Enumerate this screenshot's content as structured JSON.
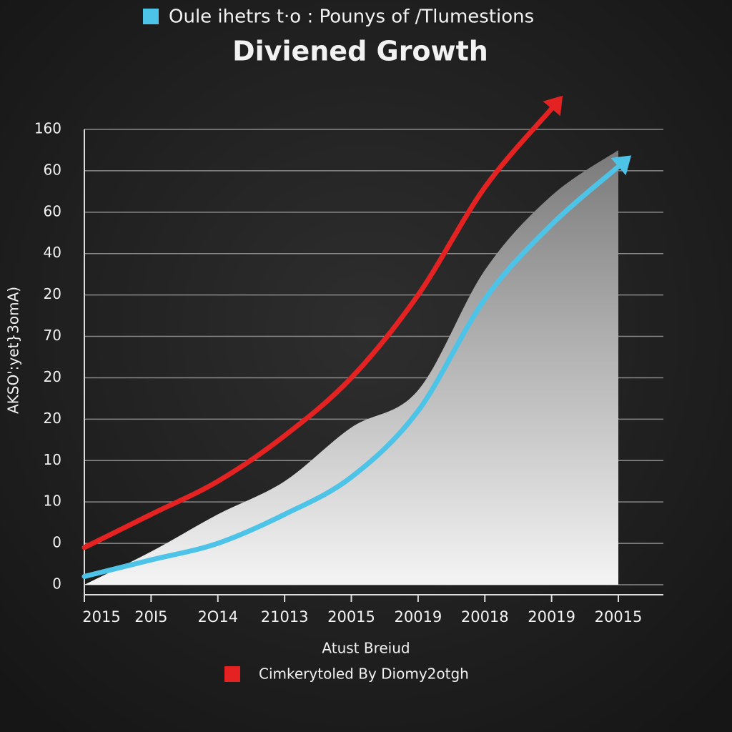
{
  "chart_data": {
    "type": "line",
    "legend_title": "Oule ihetrs t·o : Pounys of /Tlumestions",
    "title": "Diviened Growth",
    "y_label": "AKSO':yet}3omA)",
    "x_label": "Atust Breiud",
    "categories": [
      "2015",
      "20I5",
      "2O14",
      "21013",
      "20015",
      "20019",
      "20018",
      "20019",
      "20015"
    ],
    "ylim": [
      0,
      11
    ],
    "yticks": [
      0,
      1,
      2,
      3,
      4,
      5,
      6,
      7,
      8,
      9,
      10,
      11
    ],
    "ytick_labels": [
      "0",
      "0",
      "10",
      "10",
      "20",
      "20",
      "70",
      "20",
      "40",
      "60",
      "60",
      "160"
    ],
    "grid": true,
    "area": {
      "color": "#9a9a9a",
      "values": [
        0,
        0.8,
        1.7,
        2.5,
        3.8,
        4.7,
        7.6,
        9.4,
        10.5
      ]
    },
    "series": [
      {
        "name": "Cimkerytoled By Diomy2otgh",
        "color": "#e42222",
        "values": [
          0.9,
          1.7,
          2.5,
          3.6,
          5.0,
          7.0,
          9.6,
          11.5,
          null
        ]
      },
      {
        "name": "Oule ihetrs t·o : Pounys of /Tlumestions",
        "color": "#4ec3e8",
        "values": [
          0.2,
          0.6,
          1.0,
          1.7,
          2.6,
          4.2,
          6.9,
          8.7,
          10.1
        ]
      }
    ]
  }
}
